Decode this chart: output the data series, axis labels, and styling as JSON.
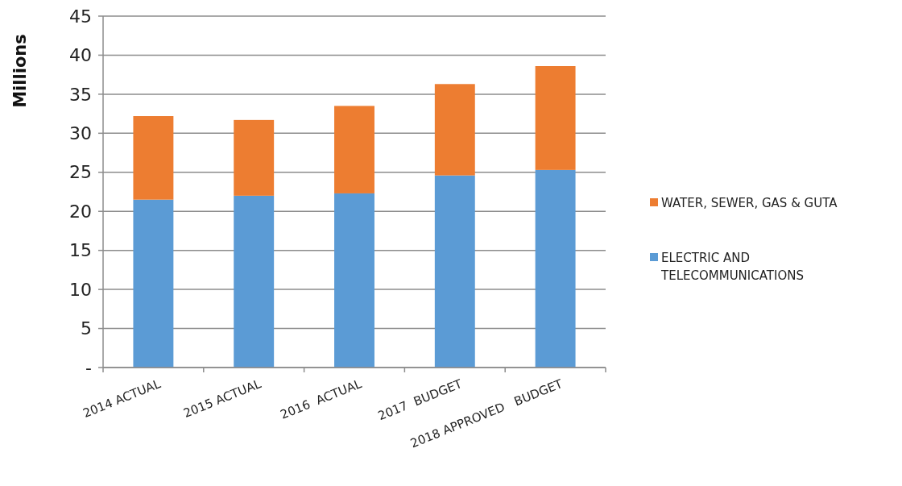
{
  "chart_data": {
    "type": "bar",
    "stacked": true,
    "ylabel": "Millions",
    "categories": [
      "2014 ACTUAL",
      "2015 ACTUAL",
      "2016  ACTUAL",
      "2017  BUDGET",
      "2018 APPROVED   BUDGET"
    ],
    "series": [
      {
        "name": "ELECTRIC AND TELECOMMUNICATIONS",
        "color": "#5b9bd5",
        "values": [
          21.5,
          22.0,
          22.3,
          24.6,
          25.3
        ]
      },
      {
        "name": "WATER, SEWER, GAS & GUTA",
        "color": "#ed7d31",
        "values": [
          10.7,
          9.7,
          11.2,
          11.7,
          13.3
        ]
      }
    ],
    "ylim": [
      0,
      45
    ],
    "yticks": [
      {
        "value": 0,
        "label": "-"
      },
      5,
      10,
      15,
      20,
      25,
      30,
      35,
      40,
      45
    ],
    "grid": "y",
    "legend": "right"
  }
}
